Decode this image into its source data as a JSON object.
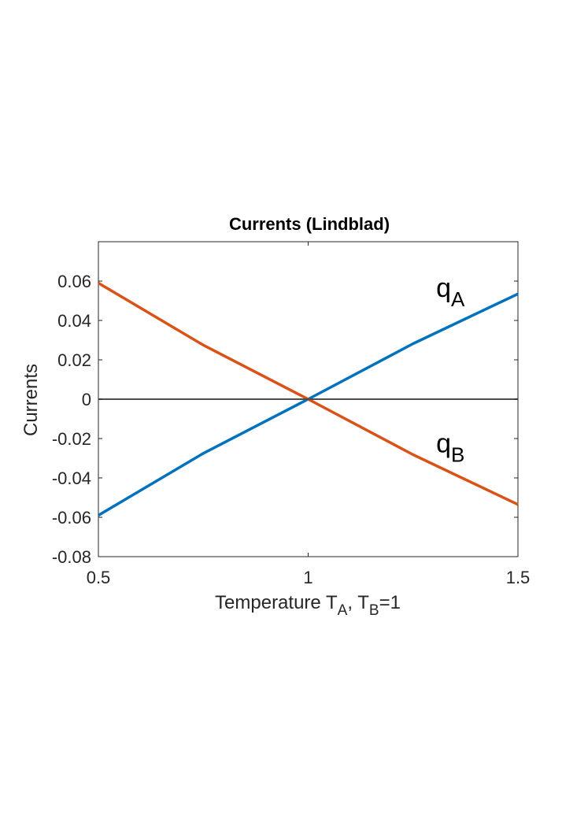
{
  "chart_data": {
    "type": "line",
    "title": "Currents (Lindblad)",
    "xlabel": {
      "main": "Temperature T",
      "sub1": "A",
      "mid": ", T",
      "sub2": "B",
      "tail": "=1"
    },
    "ylabel": "Currents",
    "xlim": [
      0.5,
      1.5
    ],
    "ylim": [
      -0.08,
      0.08
    ],
    "xticks": [
      0.5,
      1,
      1.5
    ],
    "xtick_labels": [
      "0.5",
      "1",
      "1.5"
    ],
    "yticks": [
      -0.08,
      -0.06,
      -0.04,
      -0.02,
      0,
      0.02,
      0.04,
      0.06
    ],
    "ytick_labels": [
      "-0.08",
      "-0.06",
      "-0.04",
      "-0.02",
      "0",
      "0.02",
      "0.04",
      "0.06"
    ],
    "grid": false,
    "series": [
      {
        "name": "q_A",
        "color": "#0072BD",
        "x": [
          0.5,
          0.75,
          1.0,
          1.25,
          1.5
        ],
        "y": [
          -0.059,
          -0.0275,
          0.0,
          0.0282,
          0.0535
        ]
      },
      {
        "name": "q_B",
        "color": "#D95319",
        "x": [
          0.5,
          0.75,
          1.0,
          1.25,
          1.5
        ],
        "y": [
          0.059,
          0.0275,
          0.0,
          -0.0282,
          -0.0535
        ]
      },
      {
        "color": "#4D4D4D",
        "x": [
          0.5,
          1.5
        ],
        "y": [
          0,
          0
        ]
      }
    ],
    "annotations": [
      {
        "main": "q",
        "sub": "A",
        "x": 1.305,
        "y": 0.052,
        "for": "q_A"
      },
      {
        "main": "q",
        "sub": "B",
        "x": 1.305,
        "y": -0.027,
        "for": "q_B"
      }
    ]
  }
}
